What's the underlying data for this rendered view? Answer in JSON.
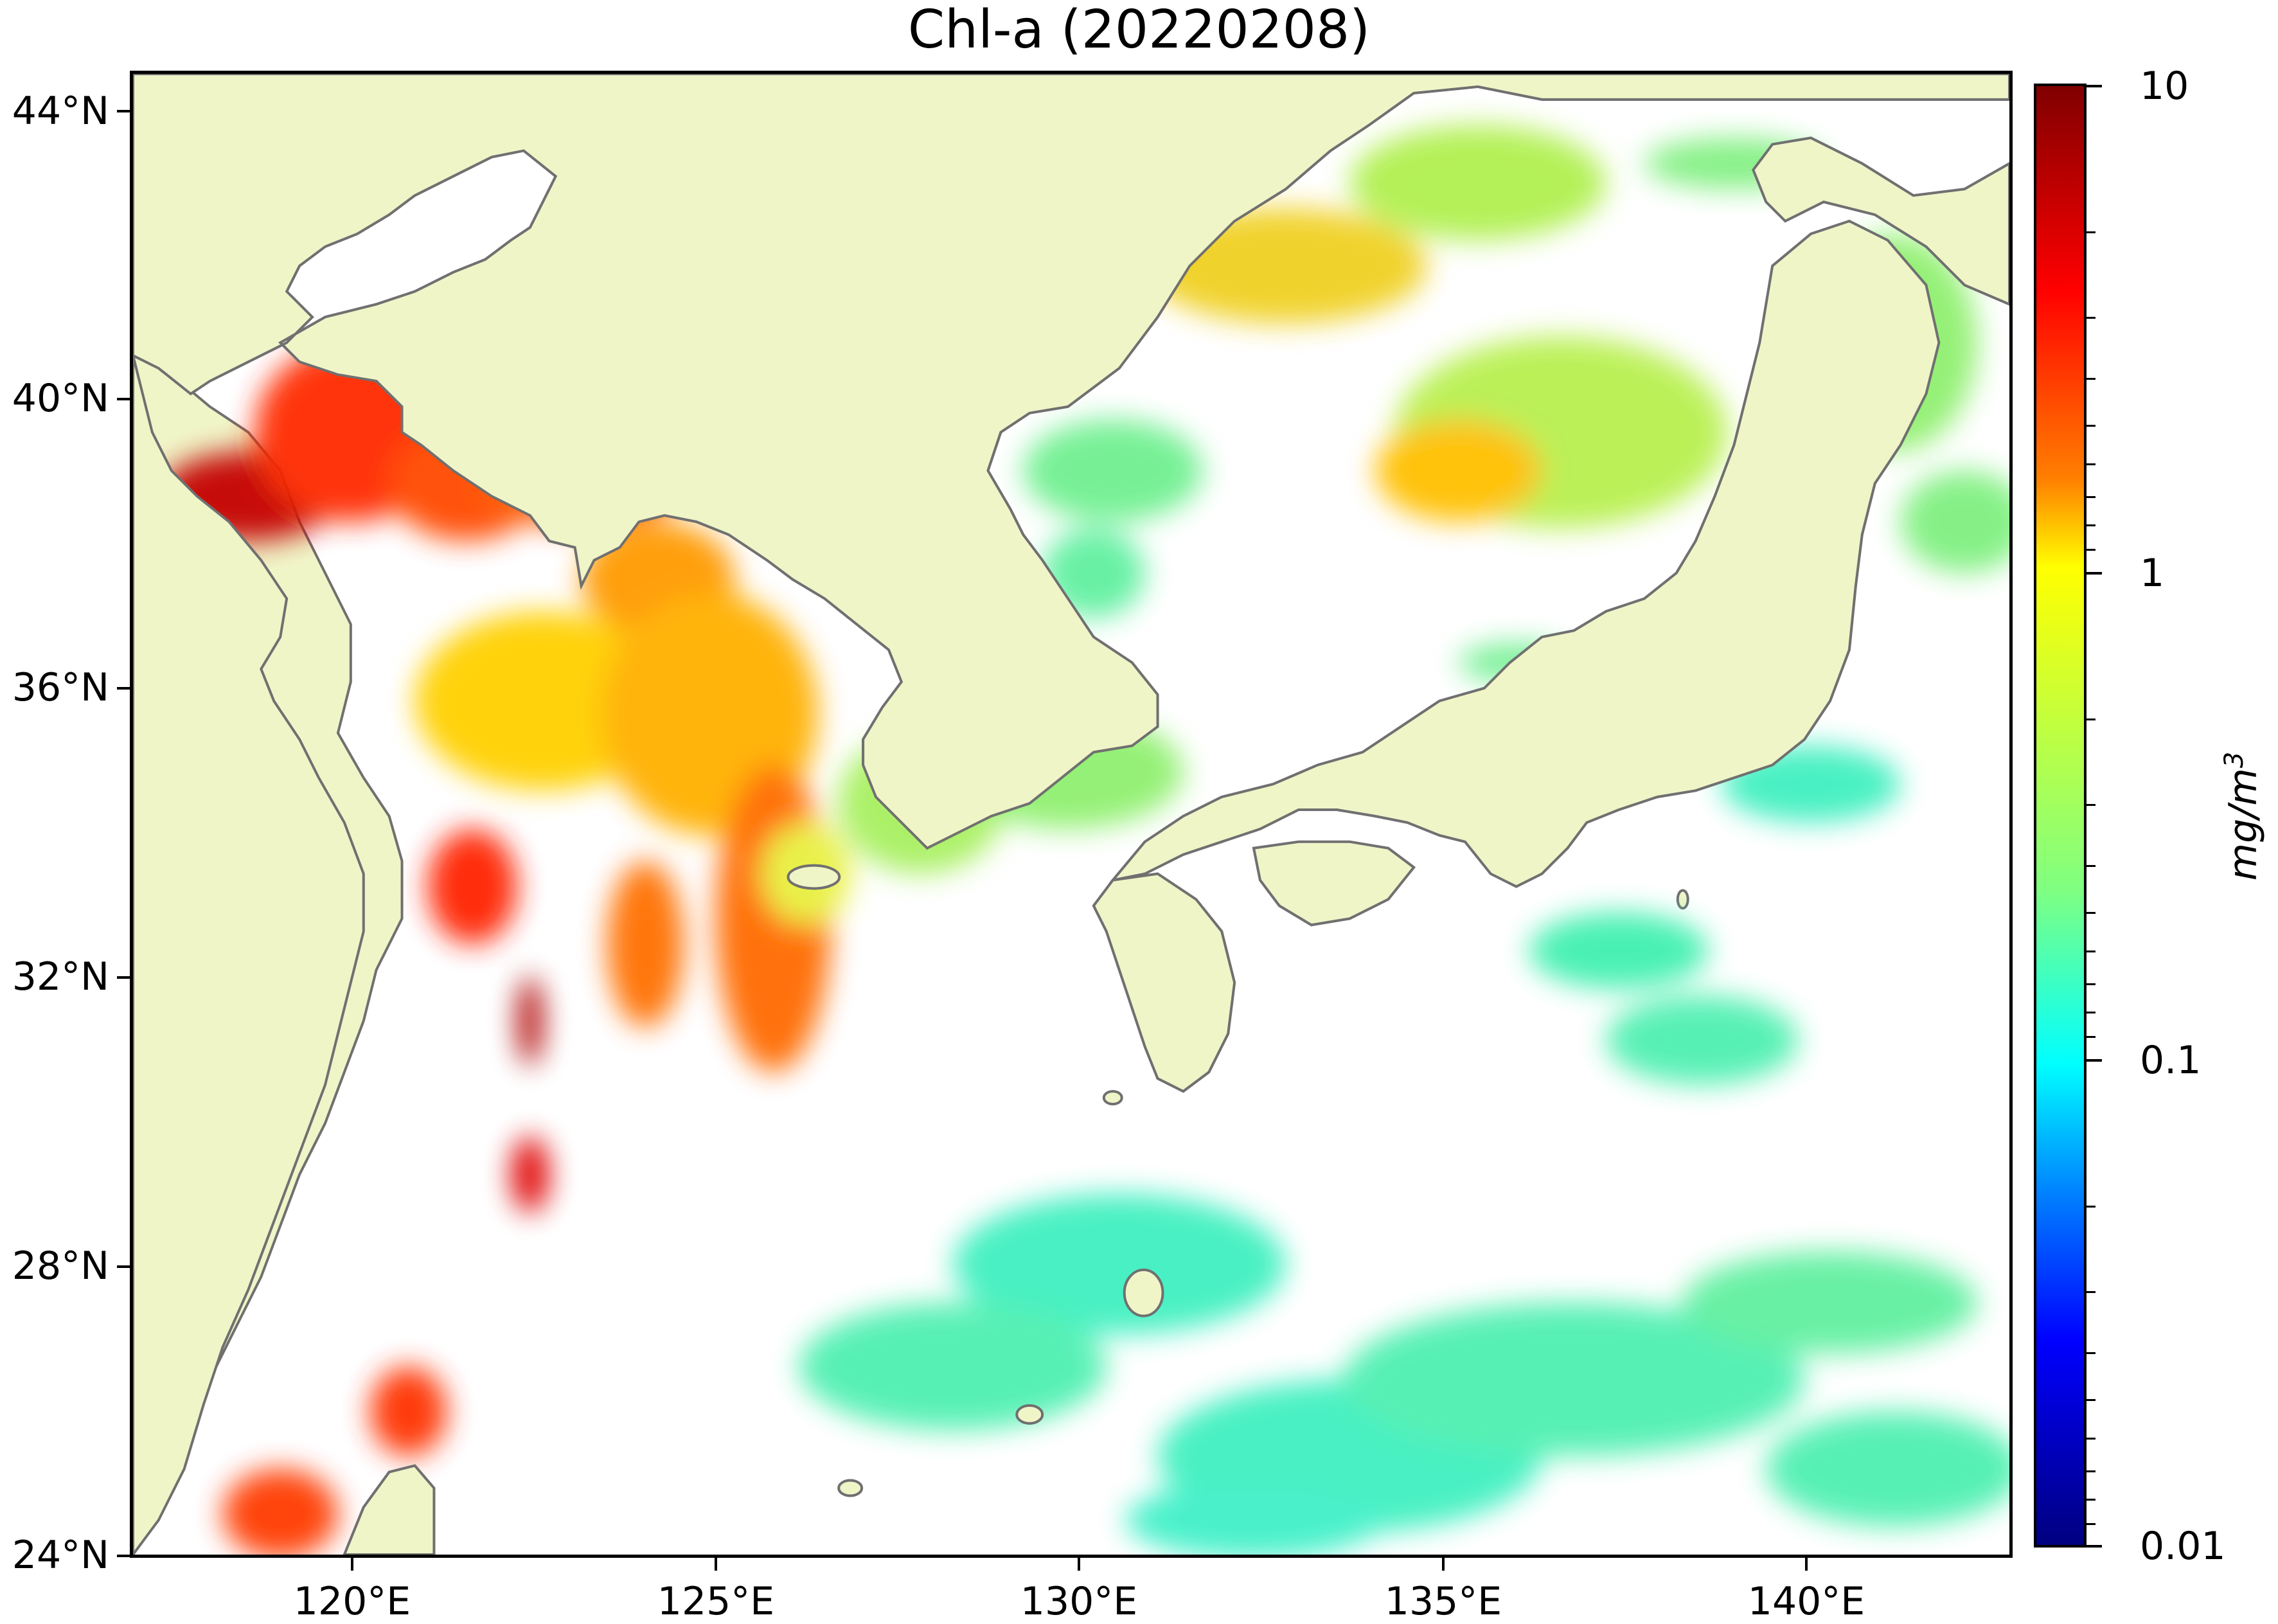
{
  "title": "Chl-a (20220208)",
  "latitude_labels": [
    "44°N",
    "40°N",
    "36°N",
    "32°N",
    "28°N",
    "24°N"
  ],
  "longitude_labels": [
    "120°E",
    "125°E",
    "130°E",
    "135°E",
    "140°E"
  ],
  "colorbar": {
    "unit": "mg/m3",
    "labels": [
      "10",
      "1",
      "0.1",
      "0.01"
    ],
    "scale": "log",
    "colormap": "jet"
  },
  "colors": {
    "land": "#f0f5c8",
    "coastline": "#707070",
    "no_data": "#ffffff"
  },
  "map_extent": {
    "lon": [
      117,
      143
    ],
    "lat": [
      24,
      44.5
    ]
  }
}
